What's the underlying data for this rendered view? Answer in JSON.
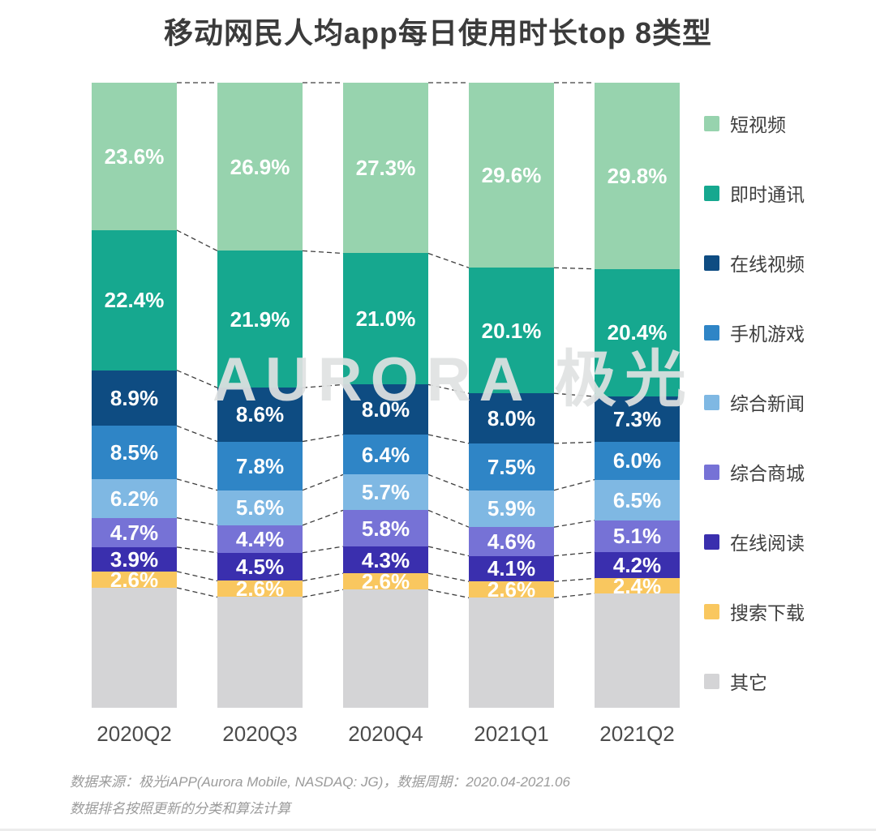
{
  "title": "移动网民人均app每日使用时长top 8类型",
  "watermark": "AURORA 极光",
  "footer": {
    "line1": "数据来源：极光iAPP(Aurora Mobile, NASDAQ: JG)，数据周期：2020.04-2021.06",
    "line2": "数据排名按照更新的分类和算法计算"
  },
  "colors": {
    "title_text": "#3b3b3b",
    "axis_text": "#4c4c4c",
    "legend_text": "#3f3f3f",
    "footer_text": "#9b9b9b",
    "connector_line": "#3d3d3d",
    "background": "#ffffff"
  },
  "chart_data": {
    "type": "bar",
    "stacked": true,
    "percent_total": 100,
    "unit": "%",
    "grid": false,
    "legend_position": "right",
    "label_color": "#ffffff",
    "categories": [
      "2020Q2",
      "2020Q3",
      "2020Q4",
      "2021Q1",
      "2021Q2"
    ],
    "series": [
      {
        "name": "短视频",
        "color": "#97D3AE",
        "values": [
          23.6,
          26.9,
          27.3,
          29.6,
          29.8
        ]
      },
      {
        "name": "即时通讯",
        "color": "#16A88F",
        "values": [
          22.4,
          21.9,
          21.0,
          20.1,
          20.4
        ]
      },
      {
        "name": "在线视频",
        "color": "#0E4C82",
        "values": [
          8.9,
          8.6,
          8.0,
          8.0,
          7.3
        ]
      },
      {
        "name": "手机游戏",
        "color": "#2F85C6",
        "values": [
          8.5,
          7.8,
          6.4,
          7.5,
          6.0
        ]
      },
      {
        "name": "综合新闻",
        "color": "#7FB8E3",
        "values": [
          6.2,
          5.6,
          5.7,
          5.9,
          6.5
        ]
      },
      {
        "name": "综合商城",
        "color": "#7672D6",
        "values": [
          4.7,
          4.4,
          5.8,
          4.6,
          5.1
        ]
      },
      {
        "name": "在线阅读",
        "color": "#3A2FAE",
        "values": [
          3.9,
          4.5,
          4.3,
          4.1,
          4.2
        ]
      },
      {
        "name": "搜索下载",
        "color": "#F9C75F",
        "values": [
          2.6,
          2.6,
          2.6,
          2.6,
          2.4
        ]
      },
      {
        "name": "其它",
        "color": "#D4D4D6",
        "values": [
          19.2,
          17.7,
          18.9,
          17.6,
          18.3
        ],
        "show_labels": false
      }
    ]
  }
}
